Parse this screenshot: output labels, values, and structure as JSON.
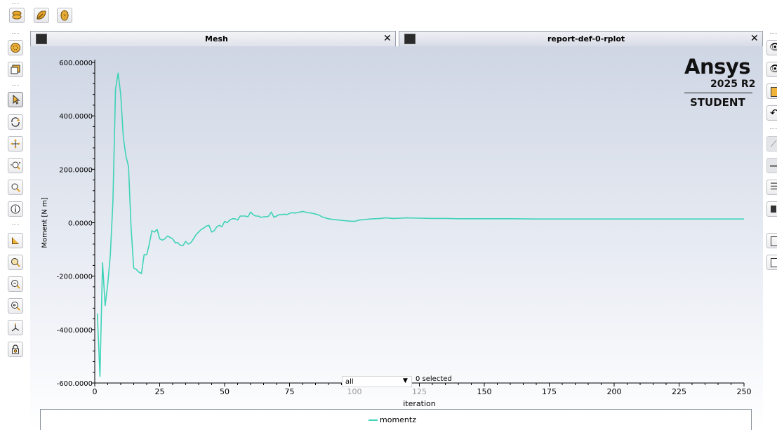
{
  "tabs": [
    {
      "label": "Mesh",
      "close": "✕"
    },
    {
      "label": "report-def-0-rplot",
      "close": "✕"
    }
  ],
  "branding": {
    "name": "Ansys",
    "version": "2025 R2",
    "edition": "STUDENT"
  },
  "selection": {
    "value": "all",
    "count_text": "0 selected"
  },
  "top_toolbar_icons": [
    "surface-icon",
    "leaf-icon",
    "mesh-icon"
  ],
  "left_toolbar_icons": [
    "model-icon",
    "display-icon",
    "select-pointer-icon",
    "rotate-icon",
    "pan-icon",
    "zoom-in-out-icon",
    "zoom-box-icon",
    "info-icon",
    "background-icon",
    "zoom-to-fit-icon",
    "zoom-out-icon",
    "zoom-previous-icon",
    "axes-icon",
    "lock-icon"
  ],
  "colors": {
    "series": "#3fd3b8",
    "axis": "#000000"
  },
  "chart_data": {
    "type": "line",
    "title": "",
    "xlabel": "iteration",
    "ylabel": "Moment [N m]",
    "xlim": [
      0,
      250
    ],
    "ylim": [
      -600,
      600
    ],
    "xticks": [
      "0",
      "25",
      "50",
      "75",
      "100",
      "125",
      "150",
      "175",
      "200",
      "225",
      "250"
    ],
    "yticks": [
      "600.0000",
      "400.0000",
      "200.0000",
      "0.0000",
      "-200.0000",
      "-400.0000",
      "-600.0000"
    ],
    "grid": false,
    "legend_position": "bottom",
    "series": [
      {
        "name": "momentz",
        "color": "#3fd3b8",
        "x": [
          1,
          2,
          3,
          4,
          5,
          6,
          7,
          8,
          9,
          10,
          11,
          12,
          13,
          14,
          15,
          16,
          17,
          18,
          19,
          20,
          21,
          22,
          23,
          24,
          25,
          26,
          27,
          28,
          29,
          30,
          31,
          32,
          33,
          34,
          35,
          36,
          37,
          38,
          39,
          40,
          41,
          42,
          43,
          44,
          45,
          46,
          47,
          48,
          49,
          50,
          51,
          52,
          53,
          54,
          55,
          56,
          57,
          58,
          59,
          60,
          61,
          62,
          63,
          64,
          65,
          66,
          67,
          68,
          69,
          70,
          71,
          72,
          73,
          74,
          75,
          76,
          77,
          78,
          79,
          80,
          82,
          84,
          86,
          88,
          90,
          92,
          94,
          96,
          98,
          100,
          102,
          104,
          106,
          108,
          110,
          112,
          115,
          118,
          120,
          125,
          130,
          135,
          140,
          145,
          150,
          160,
          170,
          180,
          190,
          200,
          210,
          220,
          230,
          240,
          250
        ],
        "y": [
          -340,
          -575,
          -150,
          -310,
          -230,
          -120,
          80,
          500,
          560,
          480,
          320,
          250,
          210,
          -20,
          -170,
          -175,
          -185,
          -190,
          -120,
          -120,
          -80,
          -30,
          -35,
          -25,
          -60,
          -65,
          -60,
          -50,
          -55,
          -60,
          -75,
          -75,
          -85,
          -85,
          -70,
          -80,
          -75,
          -60,
          -45,
          -35,
          -25,
          -20,
          -12,
          -10,
          -35,
          -30,
          -15,
          -10,
          -15,
          5,
          0,
          10,
          15,
          15,
          10,
          25,
          25,
          25,
          22,
          40,
          30,
          25,
          25,
          20,
          22,
          22,
          25,
          40,
          20,
          25,
          30,
          30,
          32,
          30,
          35,
          38,
          36,
          38,
          40,
          42,
          38,
          35,
          30,
          20,
          15,
          12,
          10,
          8,
          6,
          5,
          10,
          12,
          14,
          15,
          16,
          18,
          16,
          17,
          18,
          17,
          16,
          16,
          15,
          15,
          15,
          15,
          14,
          14,
          14,
          14,
          14,
          14,
          14,
          14,
          14
        ]
      }
    ]
  }
}
